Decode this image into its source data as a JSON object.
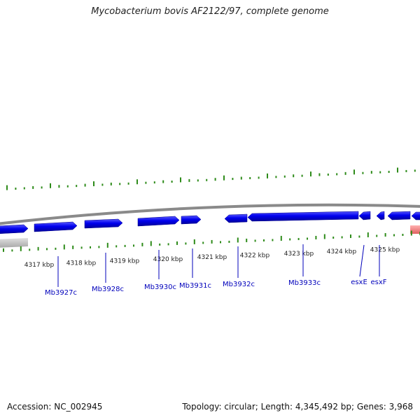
{
  "title": "Mycobacterium bovis AF2122/97, complete genome",
  "footer": {
    "accession": "Accession: NC_002945",
    "summary": "Topology: circular; Length: 4,345,492 bp; Genes: 3,968"
  },
  "colors": {
    "forward_gene": "#0000ee",
    "reverse_gene": "#0000ee",
    "backbone": "#888888",
    "gc_ticks": "#2e8b1a",
    "grey_feature": "#c8c8c8",
    "pink_feature": "#f08080",
    "label": "#0000bb"
  },
  "chart_data": {
    "type": "genome_map",
    "scale_unit": "kbp",
    "scale_ticks": [
      {
        "kbp": 4317,
        "label": "4317 kbp"
      },
      {
        "kbp": 4318,
        "label": "4318 kbp"
      },
      {
        "kbp": 4319,
        "label": "4319 kbp"
      },
      {
        "kbp": 4320,
        "label": "4320 kbp"
      },
      {
        "kbp": 4321,
        "label": "4321 kbp"
      },
      {
        "kbp": 4322,
        "label": "4322 kbp"
      },
      {
        "kbp": 4323,
        "label": "4323 kbp"
      },
      {
        "kbp": 4324,
        "label": "4324 kbp"
      },
      {
        "kbp": 4325,
        "label": "4325 kbp"
      }
    ],
    "gene_labels": [
      "Mb3927c",
      "Mb3928c",
      "Mb3930c",
      "Mb3931c",
      "Mb3932c",
      "Mb3933c",
      "esxE",
      "esxF"
    ]
  }
}
